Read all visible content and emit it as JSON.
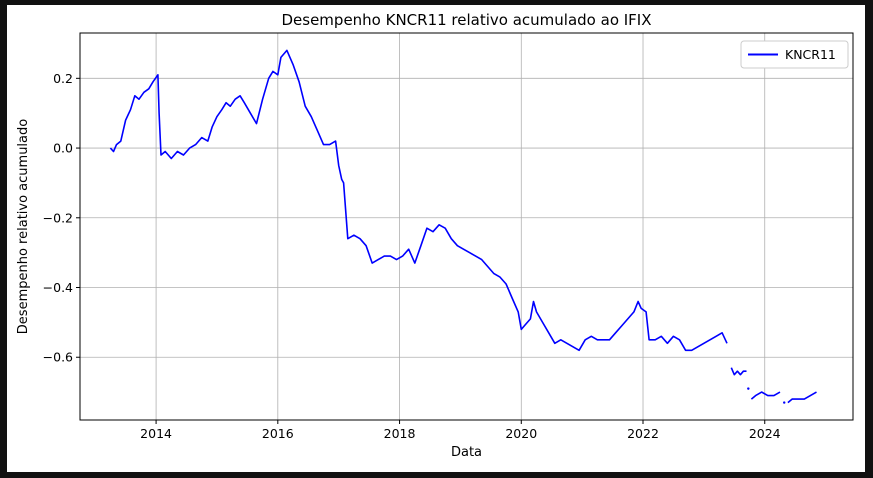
{
  "chart_data": {
    "type": "line",
    "title": "Desempenho KNCR11 relativo acumulado ao IFIX",
    "xlabel": "Data",
    "ylabel": "Desempenho relativo acumulado",
    "xlim": [
      2012.75,
      2025.45
    ],
    "ylim": [
      -0.78,
      0.33
    ],
    "x_ticks": [
      2014,
      2016,
      2018,
      2020,
      2022,
      2024
    ],
    "x_tick_labels": [
      "2014",
      "2016",
      "2018",
      "2020",
      "2022",
      "2024"
    ],
    "y_ticks": [
      0.2,
      0.0,
      -0.2,
      -0.4,
      -0.6
    ],
    "y_tick_labels": [
      "0.2",
      "0.0",
      "−0.2",
      "−0.4",
      "−0.6"
    ],
    "grid": true,
    "legend": {
      "position": "top-right",
      "entries": [
        "KNCR11"
      ]
    },
    "series": [
      {
        "name": "KNCR11",
        "color": "#0000ff",
        "segments": [
          {
            "x": [
              2013.25,
              2013.3,
              2013.35,
              2013.42,
              2013.5,
              2013.58,
              2013.65,
              2013.72,
              2013.8,
              2013.88,
              2013.95,
              2014.03,
              2014.05,
              2014.08,
              2014.15,
              2014.25,
              2014.35,
              2014.45,
              2014.55,
              2014.65,
              2014.75,
              2014.85,
              2014.92,
              2015.0,
              2015.08,
              2015.15,
              2015.22,
              2015.3,
              2015.38,
              2015.45,
              2015.55,
              2015.65,
              2015.75,
              2015.85,
              2015.92,
              2016.0,
              2016.05,
              2016.1,
              2016.15,
              2016.25,
              2016.35,
              2016.45,
              2016.55,
              2016.65,
              2016.75,
              2016.85,
              2016.95,
              2017.0,
              2017.05,
              2017.08,
              2017.15,
              2017.25,
              2017.35,
              2017.45,
              2017.55,
              2017.65,
              2017.75,
              2017.85,
              2017.95,
              2018.05,
              2018.15,
              2018.25,
              2018.35,
              2018.45,
              2018.55,
              2018.65,
              2018.75,
              2018.85,
              2018.95,
              2019.05,
              2019.15,
              2019.25,
              2019.35,
              2019.45,
              2019.55,
              2019.65,
              2019.75,
              2019.85,
              2019.95,
              2020.0,
              2020.05,
              2020.15,
              2020.2,
              2020.25,
              2020.35,
              2020.45,
              2020.55,
              2020.65,
              2020.75,
              2020.85,
              2020.95,
              2021.05,
              2021.15,
              2021.25,
              2021.35,
              2021.45,
              2021.55,
              2021.65,
              2021.75,
              2021.85,
              2021.92,
              2021.97,
              2022.05,
              2022.1,
              2022.2,
              2022.3,
              2022.4,
              2022.5,
              2022.6,
              2022.7,
              2022.8,
              2022.9,
              2023.0,
              2023.1,
              2023.2,
              2023.3,
              2023.38
            ],
            "y": [
              0.0,
              -0.01,
              0.01,
              0.02,
              0.08,
              0.11,
              0.15,
              0.14,
              0.16,
              0.17,
              0.19,
              0.21,
              0.1,
              -0.02,
              -0.01,
              -0.03,
              -0.01,
              -0.02,
              0.0,
              0.01,
              0.03,
              0.02,
              0.06,
              0.09,
              0.11,
              0.13,
              0.12,
              0.14,
              0.15,
              0.13,
              0.1,
              0.07,
              0.14,
              0.2,
              0.22,
              0.21,
              0.26,
              0.27,
              0.28,
              0.24,
              0.19,
              0.12,
              0.09,
              0.05,
              0.01,
              0.01,
              0.02,
              -0.05,
              -0.09,
              -0.1,
              -0.26,
              -0.25,
              -0.26,
              -0.28,
              -0.33,
              -0.32,
              -0.31,
              -0.31,
              -0.32,
              -0.31,
              -0.29,
              -0.33,
              -0.28,
              -0.23,
              -0.24,
              -0.22,
              -0.23,
              -0.26,
              -0.28,
              -0.29,
              -0.3,
              -0.31,
              -0.32,
              -0.34,
              -0.36,
              -0.37,
              -0.39,
              -0.43,
              -0.47,
              -0.52,
              -0.51,
              -0.49,
              -0.44,
              -0.47,
              -0.5,
              -0.53,
              -0.56,
              -0.55,
              -0.56,
              -0.57,
              -0.58,
              -0.55,
              -0.54,
              -0.55,
              -0.55,
              -0.55,
              -0.53,
              -0.51,
              -0.49,
              -0.47,
              -0.44,
              -0.46,
              -0.47,
              -0.55,
              -0.55,
              -0.54,
              -0.56,
              -0.54,
              -0.55,
              -0.58,
              -0.58,
              -0.57,
              -0.56,
              -0.55,
              -0.54,
              -0.53,
              -0.56
            ]
          },
          {
            "x": [
              2023.45,
              2023.5,
              2023.55,
              2023.6,
              2023.65,
              2023.7
            ],
            "y": [
              -0.63,
              -0.65,
              -0.64,
              -0.65,
              -0.64,
              -0.64
            ]
          },
          {
            "x": [
              2023.78,
              2023.85,
              2023.95,
              2024.05,
              2024.15,
              2024.25
            ],
            "y": [
              -0.72,
              -0.71,
              -0.7,
              -0.71,
              -0.71,
              -0.7
            ]
          },
          {
            "x": [
              2024.38,
              2024.45,
              2024.55,
              2024.65,
              2024.75,
              2024.85
            ],
            "y": [
              -0.73,
              -0.72,
              -0.72,
              -0.72,
              -0.71,
              -0.7
            ]
          }
        ],
        "isolated_points": [
          {
            "x": 2023.73,
            "y": -0.69
          },
          {
            "x": 2024.32,
            "y": -0.73
          }
        ]
      }
    ]
  }
}
